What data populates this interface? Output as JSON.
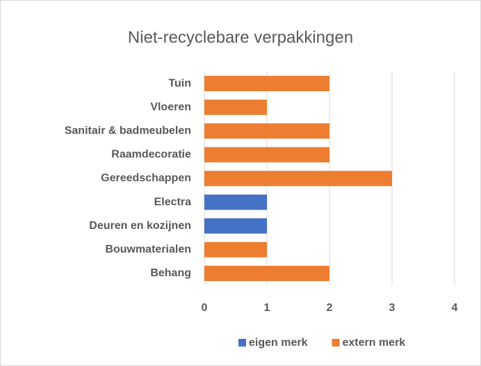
{
  "chart_data": {
    "type": "stacked-bar-horizontal",
    "title": "Niet-recyclebare verpakkingen",
    "categories": [
      "Tuin",
      "Vloeren",
      "Sanitair & badmeubelen",
      "Raamdecoratie",
      "Gereedschappen",
      "Electra",
      "Deuren en kozijnen",
      "Bouwmaterialen",
      "Behang"
    ],
    "series": [
      {
        "name": "eigen merk",
        "color": "#4472c4",
        "values": [
          null,
          null,
          null,
          null,
          null,
          1,
          1,
          null,
          null
        ]
      },
      {
        "name": "extern merk",
        "color": "#ed7d31",
        "values": [
          2,
          1,
          2,
          2,
          3,
          null,
          null,
          1,
          2
        ]
      }
    ],
    "xlim": [
      0,
      4
    ],
    "xticks": [
      0,
      1,
      2,
      3,
      4
    ],
    "grid": true,
    "legend": "bottom"
  }
}
